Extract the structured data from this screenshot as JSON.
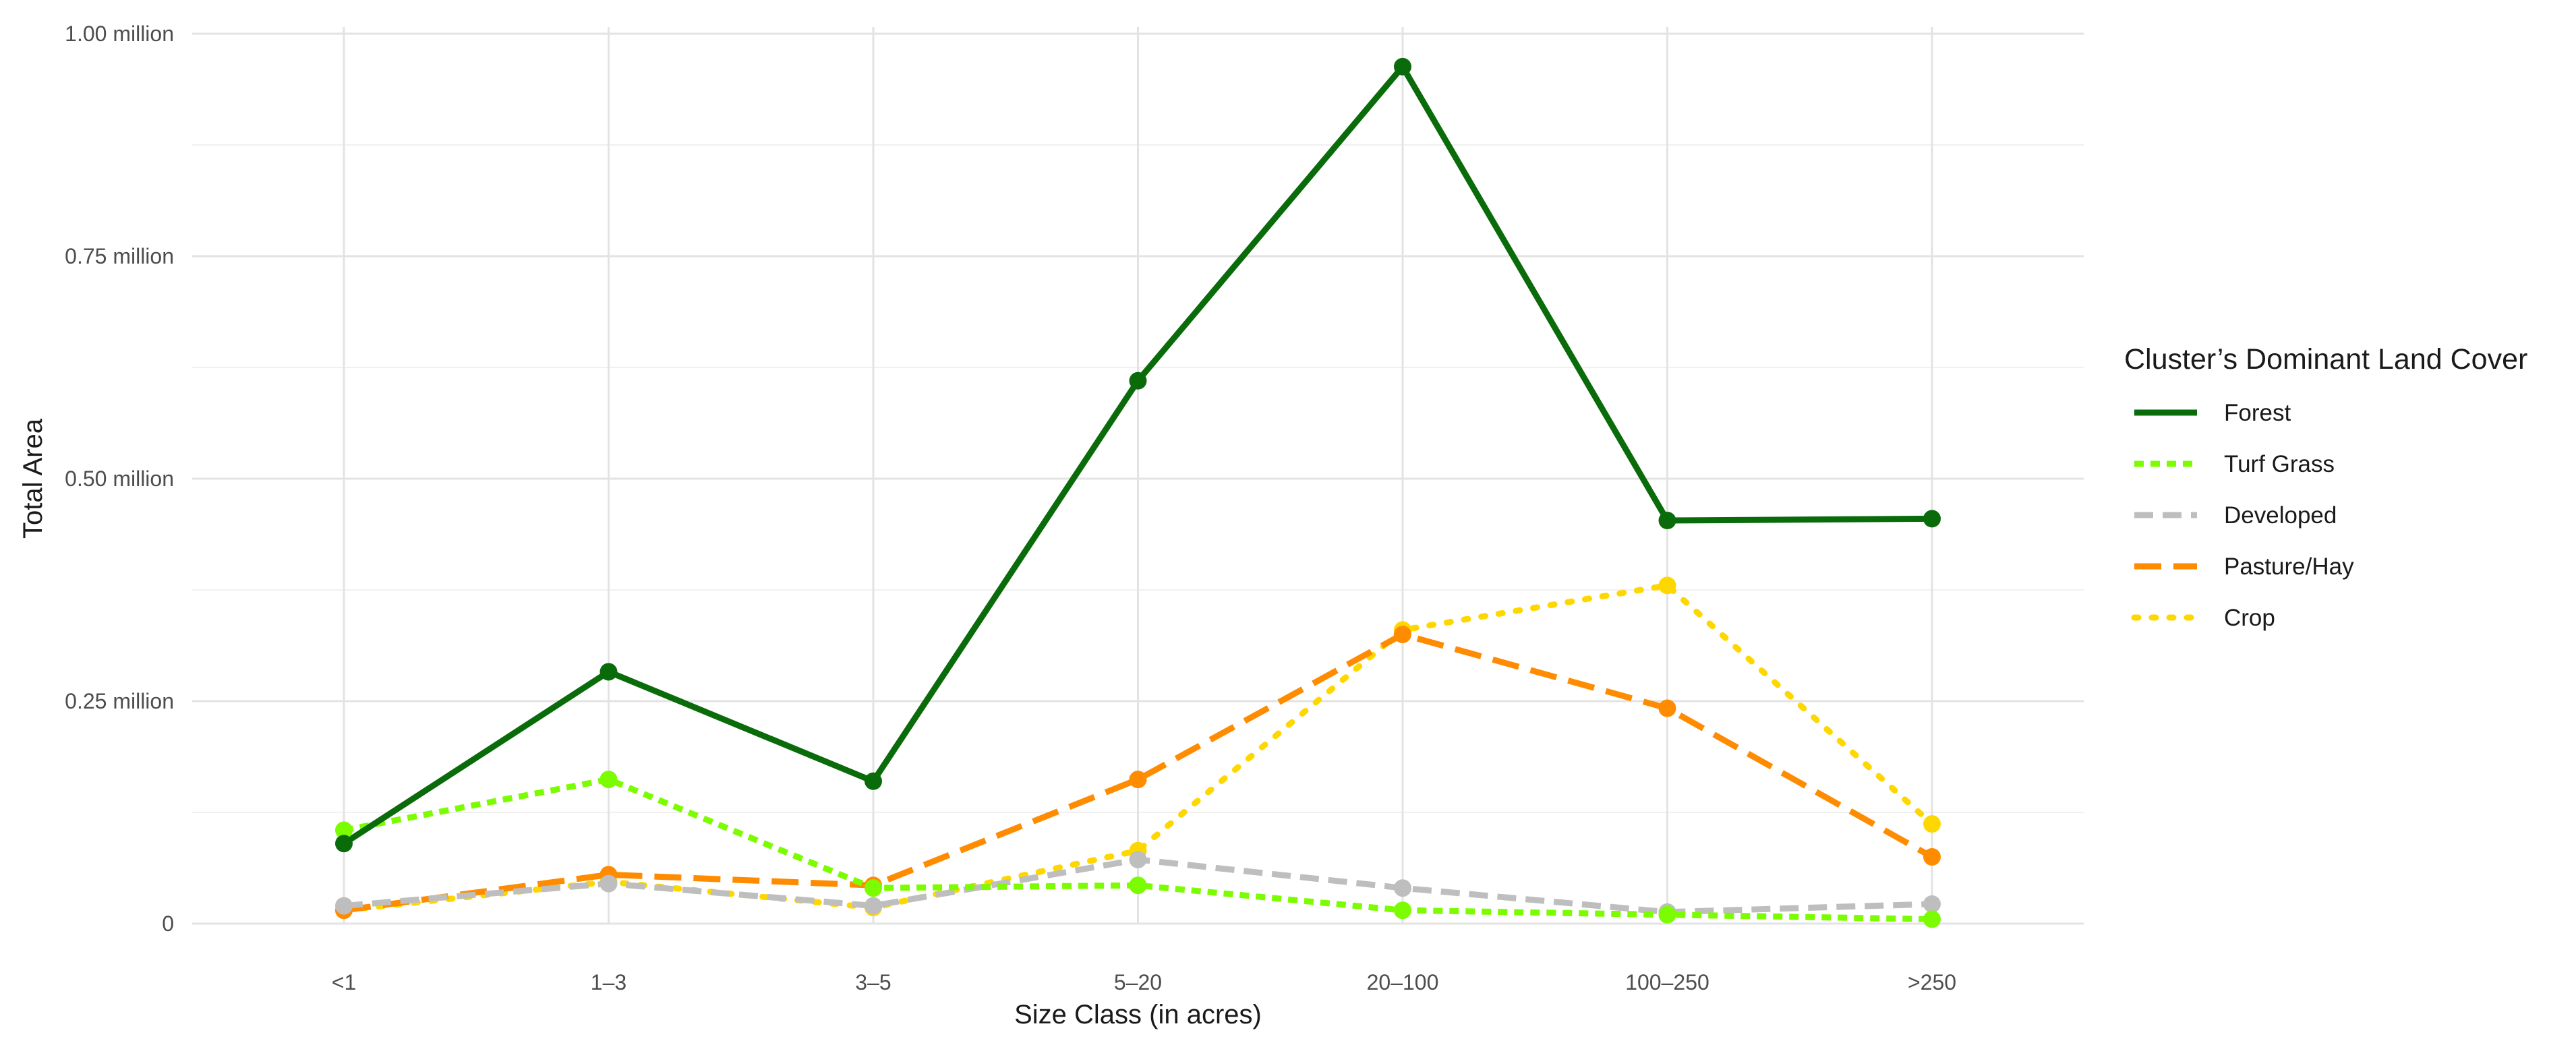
{
  "chart_data": {
    "type": "line",
    "categories": [
      "<1",
      "1–3",
      "3–5",
      "5–20",
      "20–100",
      "100–250",
      ">250"
    ],
    "xlabel": "Size Class (in acres)",
    "ylabel": "Total Area",
    "ylim": [
      0,
      1000000
    ],
    "y_ticks": [
      {
        "value": 0,
        "label": "0"
      },
      {
        "value": 250000,
        "label": "0.25 million"
      },
      {
        "value": 500000,
        "label": "0.50 million"
      },
      {
        "value": 750000,
        "label": "0.75 million"
      },
      {
        "value": 1000000,
        "label": "1.00 million"
      }
    ],
    "grid": true,
    "legend": {
      "title": "Cluster’s Dominant Land Cover",
      "position": "right"
    },
    "series": [
      {
        "name": "Forest",
        "color": "#0a6b0a",
        "line_style": "solid",
        "values": [
          90000,
          283000,
          160000,
          610000,
          963000,
          453000,
          455000
        ]
      },
      {
        "name": "Turf Grass",
        "color": "#7cfc00",
        "line_style": "dotted",
        "values": [
          105000,
          162000,
          40000,
          43000,
          15000,
          10000,
          5000
        ]
      },
      {
        "name": "Developed",
        "color": "#bebebe",
        "line_style": "dashed",
        "values": [
          20000,
          45000,
          20000,
          72000,
          40000,
          13000,
          22000
        ]
      },
      {
        "name": "Pasture/Hay",
        "color": "#ff8c00",
        "line_style": "longdash",
        "values": [
          15000,
          55000,
          43000,
          162000,
          325000,
          242000,
          75000
        ]
      },
      {
        "name": "Crop",
        "color": "#ffd700",
        "line_style": "dotted-sparse",
        "values": [
          15000,
          47000,
          18000,
          82000,
          330000,
          380000,
          112000
        ]
      }
    ]
  }
}
